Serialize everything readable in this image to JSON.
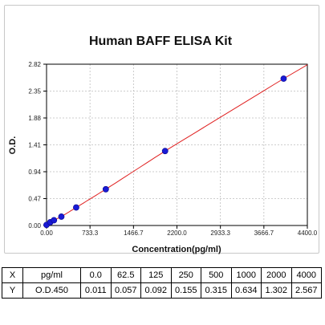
{
  "chart_data": {
    "type": "scatter",
    "title": "Human BAFF ELISA Kit",
    "xlabel": "Concentration(pg/ml)",
    "ylabel": "O.D.",
    "xlim": [
      0,
      4400
    ],
    "ylim": [
      0,
      2.82
    ],
    "x_ticks": [
      "0.00",
      "733.3",
      "1466.7",
      "2200.0",
      "2933.3",
      "3666.7",
      "4400.0"
    ],
    "x_tick_values": [
      0,
      733.3,
      1466.7,
      2200.0,
      2933.3,
      3666.7,
      4400.0
    ],
    "y_ticks": [
      "0.00",
      "0.47",
      "0.94",
      "1.41",
      "1.88",
      "2.35",
      "2.82"
    ],
    "y_tick_values": [
      0,
      0.47,
      0.94,
      1.41,
      1.88,
      2.35,
      2.82
    ],
    "grid": true,
    "series": [
      {
        "x": [
          0,
          62.5,
          125,
          250,
          500,
          1000,
          2000,
          4000
        ],
        "y": [
          0.011,
          0.057,
          0.092,
          0.155,
          0.315,
          0.634,
          1.302,
          2.567
        ],
        "marker_color": "#1a1ad6",
        "line_color": "#e02020"
      }
    ]
  },
  "table": {
    "rows": [
      {
        "label": "X",
        "cells": [
          "pg/ml",
          "0.0",
          "62.5",
          "125",
          "250",
          "500",
          "1000",
          "2000",
          "4000"
        ]
      },
      {
        "label": "Y",
        "cells": [
          "O.D.450",
          "0.011",
          "0.057",
          "0.092",
          "0.155",
          "0.315",
          "0.634",
          "1.302",
          "2.567"
        ]
      }
    ]
  }
}
